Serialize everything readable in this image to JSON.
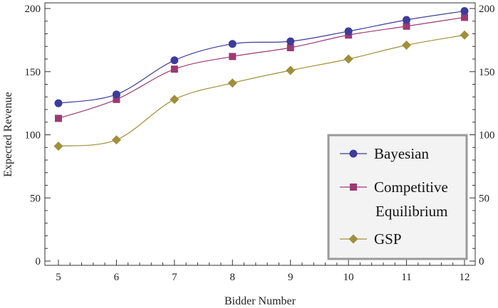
{
  "chart_data": {
    "type": "line",
    "title": "",
    "xlabel": "Bidder Number",
    "ylabel": "Expected Revenue",
    "x": [
      5,
      6,
      7,
      8,
      9,
      10,
      11,
      12
    ],
    "xlim": [
      5,
      12
    ],
    "ylim": [
      0,
      200
    ],
    "x_ticks": [
      "5",
      "6",
      "7",
      "8",
      "9",
      "10",
      "11",
      "12"
    ],
    "y_ticks": [
      "0",
      "50",
      "100",
      "150",
      "200"
    ],
    "right_y_ticks": [
      "0",
      "50",
      "100",
      "150",
      "200"
    ],
    "grid": false,
    "legend_position": "bottom-right",
    "series": [
      {
        "name": "Bayesian",
        "marker": "circle",
        "color": "#3c3c9a",
        "values": [
          125,
          132,
          159,
          172,
          174,
          182,
          191,
          198
        ]
      },
      {
        "name": "Competitive Equilibrium",
        "label_lines": [
          "Competitive",
          "Equilibrium"
        ],
        "marker": "square",
        "color": "#9c3a72",
        "values": [
          113,
          128,
          152,
          162,
          169,
          179,
          186,
          193
        ]
      },
      {
        "name": "GSP",
        "marker": "diamond",
        "color": "#a08f3c",
        "values": [
          91,
          96,
          128,
          141,
          151,
          160,
          171,
          179
        ]
      }
    ]
  }
}
